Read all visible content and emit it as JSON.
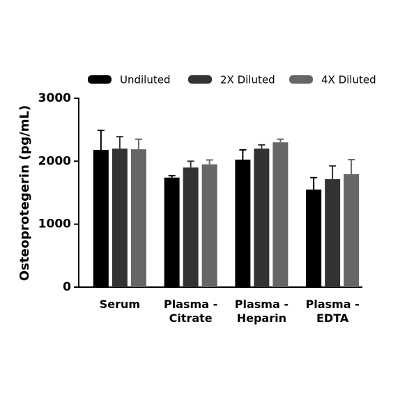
{
  "chart_data": {
    "type": "bar",
    "y_label": "Osteoprotegerin (pg/mL)",
    "categories": [
      "Serum",
      "Plasma - Citrate",
      "Plasma - Heparin",
      "Plasma - EDTA"
    ],
    "series": [
      {
        "name": "Undiluted",
        "color": "#000000",
        "values": [
          2180,
          1740,
          2025,
          1550
        ],
        "errors": [
          310,
          30,
          155,
          190
        ]
      },
      {
        "name": "2X Diluted",
        "color": "#333333",
        "values": [
          2200,
          1900,
          2200,
          1715
        ],
        "errors": [
          190,
          100,
          60,
          210
        ]
      },
      {
        "name": "4X Diluted",
        "color": "#666666",
        "values": [
          2190,
          1950,
          2300,
          1795
        ],
        "errors": [
          160,
          70,
          50,
          230
        ]
      }
    ],
    "ylim": [
      0,
      3000
    ],
    "yticks": [
      0,
      1000,
      2000,
      3000
    ],
    "legend": "top"
  }
}
